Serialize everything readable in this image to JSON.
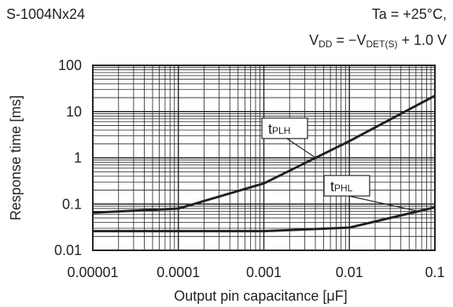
{
  "header": {
    "part_number": "S-1004Nx24",
    "condition_ta": "Ta = +25°C,",
    "vdd_prefix": "V",
    "vdd_sub": "DD",
    "vdd_mid": " = −V",
    "vdd_sub2": "DET(S)",
    "vdd_suffix": " + 1.0 V"
  },
  "chart_data": {
    "type": "line",
    "x_scale": "log",
    "y_scale": "log",
    "xlim": [
      1e-05,
      0.1
    ],
    "ylim": [
      0.01,
      100
    ],
    "xlabel": "Output pin capacitance [μF]",
    "ylabel": "Response time [ms]",
    "x_ticks": [
      "0.00001",
      "0.0001",
      "0.001",
      "0.01",
      "0.1"
    ],
    "y_ticks": [
      "100",
      "10",
      "1",
      "0.1",
      "0.01"
    ],
    "grid": true,
    "series": [
      {
        "name": "tPLH",
        "label_main": "t",
        "label_sub": "PLH",
        "x": [
          1e-05,
          0.0001,
          0.001,
          0.01,
          0.1
        ],
        "y": [
          0.065,
          0.08,
          0.28,
          2.3,
          22
        ]
      },
      {
        "name": "tPHL",
        "label_main": "t",
        "label_sub": "PHL",
        "x": [
          1e-05,
          0.0001,
          0.001,
          0.01,
          0.1
        ],
        "y": [
          0.026,
          0.026,
          0.026,
          0.031,
          0.085
        ]
      }
    ]
  }
}
